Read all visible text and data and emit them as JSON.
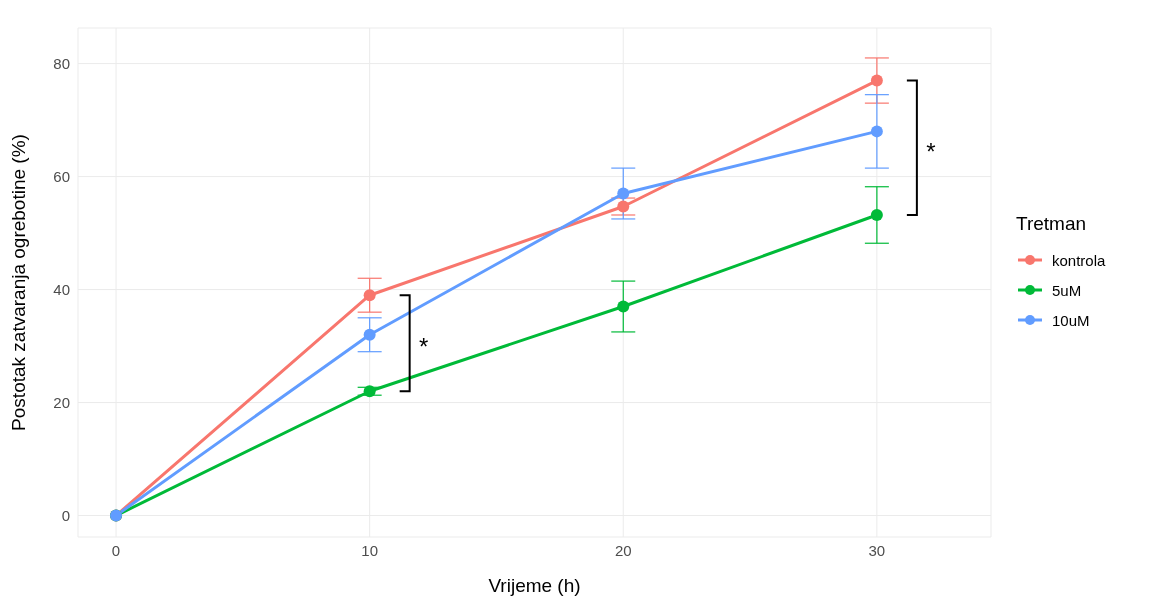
{
  "chart_data": {
    "type": "line",
    "xlabel": "Vrijeme (h)",
    "ylabel": "Postotak zatvaranja ogrebotine (%)",
    "legend_title": "Tretman",
    "x": [
      0,
      10,
      20,
      30
    ],
    "series": [
      {
        "name": "kontrola",
        "color": "#f8766d",
        "values": [
          0,
          39,
          54.7,
          77
        ],
        "errors": [
          null,
          3,
          1.5,
          4
        ]
      },
      {
        "name": "5uM",
        "color": "#00ba38",
        "values": [
          0,
          22,
          37,
          53.2
        ],
        "errors": [
          null,
          0.7,
          4.5,
          5
        ]
      },
      {
        "name": "10uM",
        "color": "#619cff",
        "values": [
          0,
          32,
          57,
          68
        ],
        "errors": [
          null,
          3,
          4.5,
          6.5
        ]
      }
    ],
    "xlim": [
      -1.5,
      34.5
    ],
    "ylim": [
      -3.8,
      86.3
    ],
    "xticks": [
      0,
      10,
      20,
      30
    ],
    "yticks": [
      0,
      20,
      40,
      60,
      80
    ],
    "grid": true,
    "legend": "right",
    "marker": "circle",
    "line_style": "solid",
    "annotations": [
      {
        "text": "*",
        "x": 10,
        "y": 22
      },
      {
        "text": "*",
        "x": 30,
        "y": 53.2
      }
    ]
  }
}
